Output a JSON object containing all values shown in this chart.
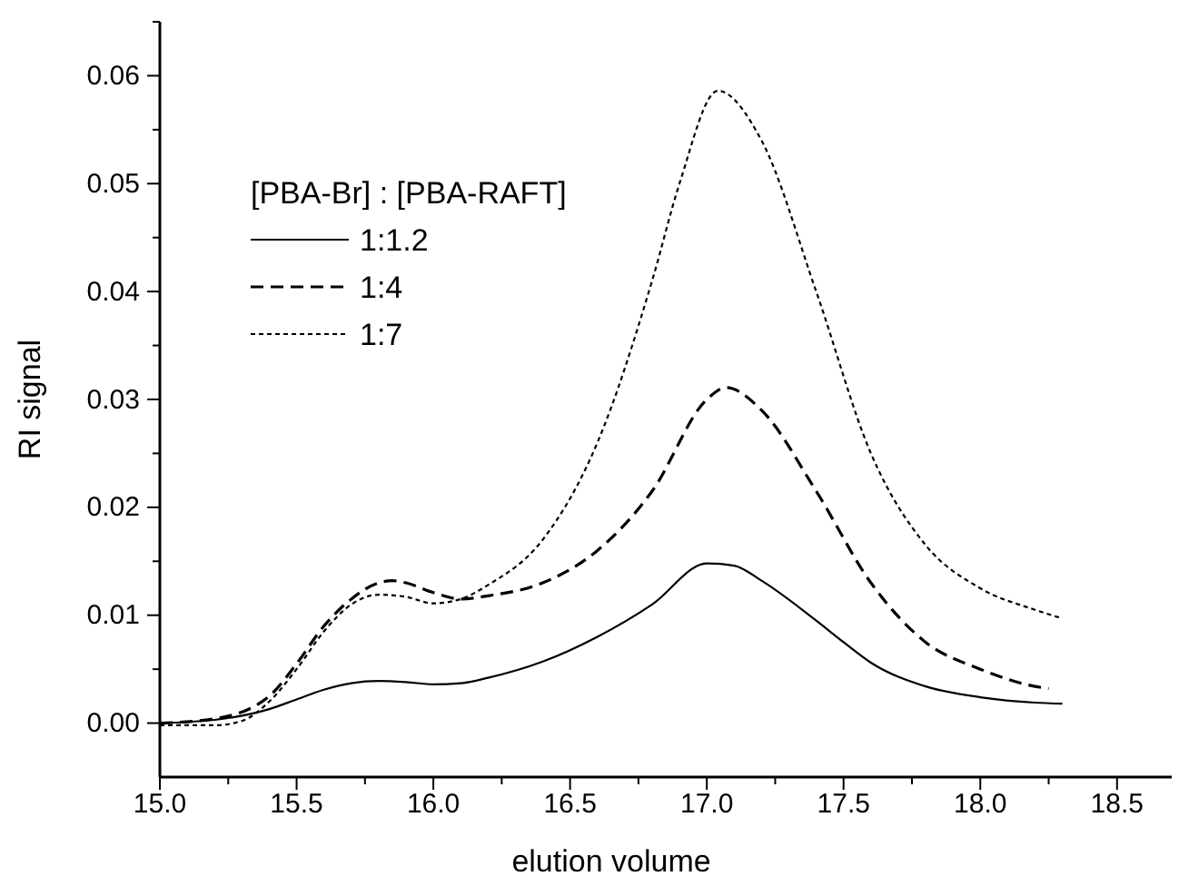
{
  "chart_data": {
    "type": "line",
    "xlabel": "elution volume",
    "ylabel": "RI signal",
    "legend_title": "[PBA-Br] : [PBA-RAFT]",
    "legend": "top left",
    "xlim": [
      15,
      18.7
    ],
    "ylim": [
      -0.005,
      0.065
    ],
    "xticks": [
      {
        "value": 15,
        "label": "15.0"
      },
      {
        "value": 15.25,
        "label": null
      },
      {
        "value": 15.5,
        "label": "15.5"
      },
      {
        "value": 15.75,
        "label": null
      },
      {
        "value": 16,
        "label": "16.0"
      },
      {
        "value": 16.25,
        "label": null
      },
      {
        "value": 16.5,
        "label": "16.5"
      },
      {
        "value": 16.75,
        "label": null
      },
      {
        "value": 17,
        "label": "17.0"
      },
      {
        "value": 17.25,
        "label": null
      },
      {
        "value": 17.5,
        "label": "17.5"
      },
      {
        "value": 17.75,
        "label": null
      },
      {
        "value": 18,
        "label": "18.0"
      },
      {
        "value": 18.25,
        "label": null
      },
      {
        "value": 18.5,
        "label": "18.5"
      }
    ],
    "yticks": [
      {
        "value": 0,
        "label": "0.00"
      },
      {
        "value": 0.005,
        "label": null
      },
      {
        "value": 0.01,
        "label": "0.01"
      },
      {
        "value": 0.015,
        "label": null
      },
      {
        "value": 0.02,
        "label": "0.02"
      },
      {
        "value": 0.025,
        "label": null
      },
      {
        "value": 0.03,
        "label": "0.03"
      },
      {
        "value": 0.035,
        "label": null
      },
      {
        "value": 0.04,
        "label": "0.04"
      },
      {
        "value": 0.045,
        "label": null
      },
      {
        "value": 0.05,
        "label": "0.05"
      },
      {
        "value": 0.055,
        "label": null
      },
      {
        "value": 0.06,
        "label": "0.06"
      },
      {
        "value": 0.065,
        "label": null
      }
    ],
    "series": [
      {
        "name": "1:1.2",
        "color": "#000000",
        "line_style": "solid",
        "x": [
          15.0,
          15.2,
          15.4,
          15.5,
          15.6,
          15.7,
          15.8,
          15.9,
          16.0,
          16.1,
          16.2,
          16.4,
          16.6,
          16.8,
          17.0,
          17.1,
          17.2,
          17.4,
          17.5,
          17.6,
          17.8,
          18.0,
          18.2,
          18.3
        ],
        "values": [
          0,
          0.0003,
          0.0013,
          0.0022,
          0.0031,
          0.0037,
          0.0039,
          0.0038,
          0.0036,
          0.0037,
          0.0042,
          0.0057,
          0.008,
          0.011,
          0.0148,
          0.0146,
          0.0132,
          0.0095,
          0.0075,
          0.0056,
          0.0034,
          0.0024,
          0.0019,
          0.0018
        ]
      },
      {
        "name": "1:4",
        "color": "#000000",
        "line_style": "dashed",
        "x": [
          15.0,
          15.2,
          15.4,
          15.5,
          15.6,
          15.7,
          15.8,
          15.85,
          15.9,
          16.0,
          16.1,
          16.2,
          16.4,
          16.6,
          16.8,
          17.0,
          17.07,
          17.2,
          17.4,
          17.6,
          17.8,
          18.0,
          18.2,
          18.25
        ],
        "values": [
          0,
          0.0004,
          0.0025,
          0.0055,
          0.009,
          0.0115,
          0.013,
          0.0132,
          0.013,
          0.0121,
          0.0115,
          0.0118,
          0.013,
          0.016,
          0.0215,
          0.03,
          0.0311,
          0.029,
          0.0215,
          0.013,
          0.0075,
          0.005,
          0.0034,
          0.0032
        ]
      },
      {
        "name": "1:7",
        "color": "#000000",
        "line_style": "dotted",
        "x": [
          15.0,
          15.2,
          15.3,
          15.4,
          15.5,
          15.6,
          15.7,
          15.8,
          15.9,
          16.0,
          16.1,
          16.2,
          16.4,
          16.6,
          16.8,
          16.9,
          17.04,
          17.2,
          17.4,
          17.6,
          17.8,
          18.0,
          18.2,
          18.3
        ],
        "values": [
          -0.0002,
          -0.0002,
          0.0002,
          0.002,
          0.005,
          0.0085,
          0.011,
          0.0119,
          0.0117,
          0.0111,
          0.0115,
          0.0128,
          0.017,
          0.026,
          0.041,
          0.05,
          0.0586,
          0.054,
          0.04,
          0.025,
          0.0165,
          0.0125,
          0.0105,
          0.0097
        ]
      }
    ]
  }
}
